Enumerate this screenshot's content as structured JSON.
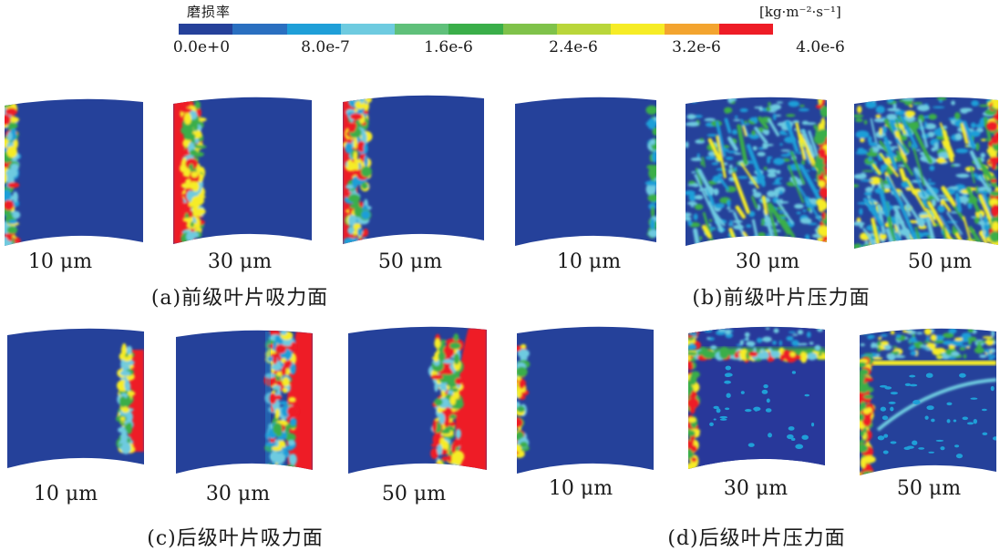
{
  "colorbar": {
    "title": "磨损率",
    "unit": "[kg·m⁻²·s⁻¹]",
    "colors": [
      "#25419a",
      "#2a6fc0",
      "#1f9fd8",
      "#6ecbe0",
      "#5fc07a",
      "#3aae49",
      "#7fc24a",
      "#b9d63a",
      "#f6ec26",
      "#f3a42f",
      "#ee1c26"
    ],
    "ticks": [
      "0.0e+0",
      "8.0e-7",
      "1.6e-6",
      "2.4e-6",
      "3.2e-6",
      "4.0e-6"
    ]
  },
  "panels": [
    {
      "size": "10 μm"
    },
    {
      "size": "30 μm"
    },
    {
      "size": "50 μm"
    },
    {
      "size": "10 μm"
    },
    {
      "size": "30 μm"
    },
    {
      "size": "50 μm"
    },
    {
      "size": "10 μm"
    },
    {
      "size": "30 μm"
    },
    {
      "size": "50 μm"
    },
    {
      "size": "10 μm"
    },
    {
      "size": "30 μm"
    },
    {
      "size": "50 μm"
    }
  ],
  "captions": {
    "a": "(a)前级叶片吸力面",
    "b": "(b)前级叶片压力面",
    "c": "(c)后级叶片吸力面",
    "d": "(d)后级叶片压力面"
  }
}
